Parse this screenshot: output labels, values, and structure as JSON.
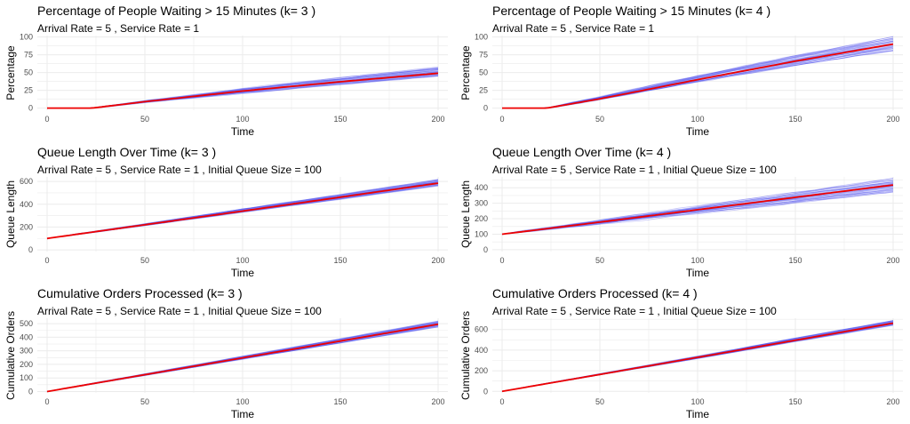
{
  "chart_data": [
    {
      "type": "line",
      "title": "Percentage of People Waiting > 15 Minutes (k= 3 )",
      "subtitle": "Arrival Rate = 5 , Service Rate = 1",
      "xlabel": "Time",
      "ylabel": "Percentage",
      "xlim": [
        -5,
        205
      ],
      "ylim": [
        -3,
        102
      ],
      "xticks": [
        0,
        50,
        100,
        150,
        200
      ],
      "yticks": [
        0,
        25,
        50,
        75,
        100
      ],
      "grid": true,
      "series": [
        {
          "role": "simulation-runs",
          "color": "#5555ee",
          "x": [
            0,
            23,
            50,
            100,
            150,
            200
          ],
          "y": [
            0,
            0,
            9,
            24,
            38,
            51
          ],
          "band_at_200": [
            44,
            58
          ]
        },
        {
          "role": "mean",
          "color": "#ee0000",
          "x": [
            0,
            23,
            50,
            100,
            150,
            200
          ],
          "y": [
            0,
            0,
            9,
            24,
            37,
            49
          ]
        }
      ]
    },
    {
      "type": "line",
      "title": "Percentage of People Waiting > 15 Minutes (k= 4 )",
      "subtitle": "Arrival Rate = 5 , Service Rate = 1",
      "xlabel": "Time",
      "ylabel": "Percentage",
      "xlim": [
        -5,
        205
      ],
      "ylim": [
        -3,
        102
      ],
      "xticks": [
        0,
        50,
        100,
        150,
        200
      ],
      "yticks": [
        0,
        25,
        50,
        75,
        100
      ],
      "grid": true,
      "series": [
        {
          "role": "simulation-runs",
          "color": "#5555ee",
          "x": [
            0,
            23,
            50,
            100,
            150,
            200
          ],
          "y": [
            0,
            0,
            14,
            42,
            68,
            92
          ],
          "band_at_200": [
            80,
            100
          ]
        },
        {
          "role": "mean",
          "color": "#ee0000",
          "x": [
            0,
            23,
            50,
            100,
            150,
            200
          ],
          "y": [
            0,
            0,
            13,
            40,
            66,
            90
          ]
        }
      ]
    },
    {
      "type": "line",
      "title": "Queue Length Over Time (k= 3 )",
      "subtitle": "Arrival Rate = 5 , Service Rate = 1 , Initial Queue Size = 100",
      "xlabel": "Time",
      "ylabel": "Queue Length",
      "xlim": [
        -5,
        205
      ],
      "ylim": [
        -15,
        640
      ],
      "xticks": [
        0,
        50,
        100,
        150,
        200
      ],
      "yticks": [
        0,
        200,
        400,
        600
      ],
      "grid": true,
      "series": [
        {
          "role": "simulation-runs",
          "color": "#5555ee",
          "x": [
            0,
            50,
            100,
            150,
            200
          ],
          "y": [
            100,
            220,
            345,
            465,
            590
          ],
          "band_at_200": [
            560,
            620
          ]
        },
        {
          "role": "mean",
          "color": "#ee0000",
          "x": [
            0,
            50,
            100,
            150,
            200
          ],
          "y": [
            100,
            220,
            340,
            462,
            585
          ]
        }
      ]
    },
    {
      "type": "line",
      "title": "Queue Length Over Time (k= 4 )",
      "subtitle": "Arrival Rate = 5 , Service Rate = 1 , Initial Queue Size = 100",
      "xlabel": "Time",
      "ylabel": "Queue Length",
      "xlim": [
        -5,
        205
      ],
      "ylim": [
        -12,
        470
      ],
      "xticks": [
        0,
        50,
        100,
        150,
        200
      ],
      "yticks": [
        0,
        100,
        200,
        300,
        400
      ],
      "grid": true,
      "series": [
        {
          "role": "simulation-runs",
          "color": "#5555ee",
          "x": [
            0,
            50,
            100,
            150,
            200
          ],
          "y": [
            100,
            180,
            260,
            340,
            420
          ],
          "band_at_200": [
            370,
            460
          ]
        },
        {
          "role": "mean",
          "color": "#ee0000",
          "x": [
            0,
            50,
            100,
            150,
            200
          ],
          "y": [
            100,
            178,
            258,
            338,
            418
          ]
        }
      ]
    },
    {
      "type": "line",
      "title": "Cumulative Orders Processed (k= 3 )",
      "subtitle": "Arrival Rate = 5 , Service Rate = 1 , Initial Queue Size = 100",
      "xlabel": "Time",
      "ylabel": "Cumulative Orders",
      "xlim": [
        -5,
        205
      ],
      "ylim": [
        -10,
        540
      ],
      "xticks": [
        0,
        50,
        100,
        150,
        200
      ],
      "yticks": [
        0,
        100,
        200,
        300,
        400,
        500
      ],
      "grid": true,
      "series": [
        {
          "role": "simulation-runs",
          "color": "#5555ee",
          "x": [
            0,
            50,
            100,
            150,
            200
          ],
          "y": [
            0,
            125,
            250,
            375,
            500
          ],
          "band_at_200": [
            475,
            520
          ]
        },
        {
          "role": "mean",
          "color": "#ee0000",
          "x": [
            0,
            50,
            100,
            150,
            200
          ],
          "y": [
            0,
            124,
            248,
            372,
            496
          ]
        }
      ]
    },
    {
      "type": "line",
      "title": "Cumulative Orders Processed (k= 4 )",
      "subtitle": "Arrival Rate = 5 , Service Rate = 1 , Initial Queue Size = 100",
      "xlabel": "Time",
      "ylabel": "Cumulative Orders",
      "xlim": [
        -5,
        205
      ],
      "ylim": [
        -15,
        710
      ],
      "xticks": [
        0,
        50,
        100,
        150,
        200
      ],
      "yticks": [
        0,
        200,
        400,
        600
      ],
      "grid": true,
      "series": [
        {
          "role": "simulation-runs",
          "color": "#5555ee",
          "x": [
            0,
            50,
            100,
            150,
            200
          ],
          "y": [
            0,
            165,
            330,
            500,
            665
          ],
          "band_at_200": [
            640,
            690
          ]
        },
        {
          "role": "mean",
          "color": "#ee0000",
          "x": [
            0,
            50,
            100,
            150,
            200
          ],
          "y": [
            0,
            164,
            330,
            496,
            662
          ]
        }
      ]
    }
  ]
}
